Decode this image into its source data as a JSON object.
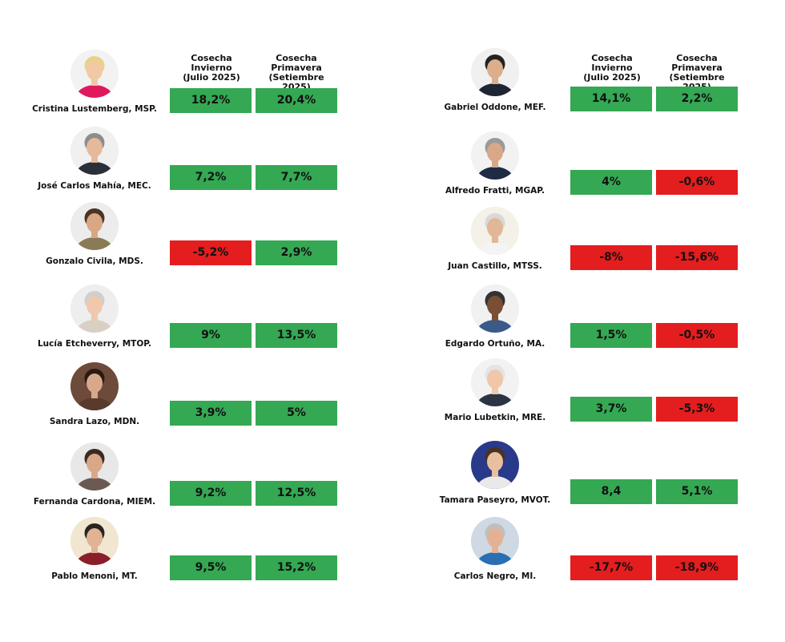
{
  "headers": {
    "invierno_line1": "Cosecha Invierno",
    "invierno_line2": "(Julio 2025)",
    "primavera_line1": "Cosecha Primavera",
    "primavera_line2": "(Setiembre 2025)"
  },
  "colors": {
    "positive": "#34a853",
    "negative": "#e41d1f"
  },
  "people": [
    {
      "name": "Cristina Lustemberg, MSP.",
      "invierno": "18,2%",
      "primavera": "20,4%",
      "invierno_sign": "positive",
      "primavera_sign": "positive",
      "photo": "woman-blonde-portrait"
    },
    {
      "name": "José Carlos Mahía, MEC.",
      "invierno": "7,2%",
      "primavera": "7,7%",
      "invierno_sign": "positive",
      "primavera_sign": "positive",
      "photo": "man-glasses-portrait"
    },
    {
      "name": "Gonzalo Civila, MDS.",
      "invierno": "-5,2%",
      "primavera": "2,9%",
      "invierno_sign": "negative",
      "primavera_sign": "positive",
      "photo": "man-beard-portrait"
    },
    {
      "name": "Lucía Etcheverry, MTOP.",
      "invierno": "9%",
      "primavera": "13,5%",
      "invierno_sign": "positive",
      "primavera_sign": "positive",
      "photo": "woman-gray-hair-portrait"
    },
    {
      "name": "Sandra Lazo, MDN.",
      "invierno": "3,9%",
      "primavera": "5%",
      "invierno_sign": "positive",
      "primavera_sign": "positive",
      "photo": "woman-dark-hair-portrait"
    },
    {
      "name": "Fernanda Cardona, MIEM.",
      "invierno": "9,2%",
      "primavera": "12,5%",
      "invierno_sign": "positive",
      "primavera_sign": "positive",
      "photo": "woman-speaking-portrait"
    },
    {
      "name": "Pablo Menoni, MT.",
      "invierno": "9,5%",
      "primavera": "15,2%",
      "invierno_sign": "positive",
      "primavera_sign": "positive",
      "photo": "man-glasses-sweater-portrait"
    },
    {
      "name": "Gabriel Oddone, MEF.",
      "invierno": "14,1%",
      "primavera": "2,2%",
      "invierno_sign": "positive",
      "primavera_sign": "positive",
      "photo": "man-suit-portrait"
    },
    {
      "name": "Alfredo Fratti, MGAP.",
      "invierno": "4%",
      "primavera": "-0,6%",
      "invierno_sign": "positive",
      "primavera_sign": "negative",
      "photo": "man-gray-hair-portrait"
    },
    {
      "name": "Juan Castillo, MTSS.",
      "invierno": "-8%",
      "primavera": "-15,6%",
      "invierno_sign": "negative",
      "primavera_sign": "negative",
      "photo": "man-white-hair-portrait"
    },
    {
      "name": "Edgardo Ortuño, MA.",
      "invierno": "1,5%",
      "primavera": "-0,5%",
      "invierno_sign": "positive",
      "primavera_sign": "negative",
      "photo": "man-bald-glasses-portrait"
    },
    {
      "name": "Mario Lubetkin, MRE.",
      "invierno": "3,7%",
      "primavera": "-5,3%",
      "invierno_sign": "positive",
      "primavera_sign": "negative",
      "photo": "man-white-hair-suit-portrait"
    },
    {
      "name": "Tamara Paseyro, MVOT.",
      "invierno": "8,4",
      "primavera": "5,1%",
      "invierno_sign": "positive",
      "primavera_sign": "positive",
      "photo": "woman-long-hair-portrait"
    },
    {
      "name": "Carlos Negro, MI.",
      "invierno": "-17,7%",
      "primavera": "-18,9%",
      "invierno_sign": "negative",
      "primavera_sign": "negative",
      "photo": "man-bald-portrait"
    }
  ]
}
